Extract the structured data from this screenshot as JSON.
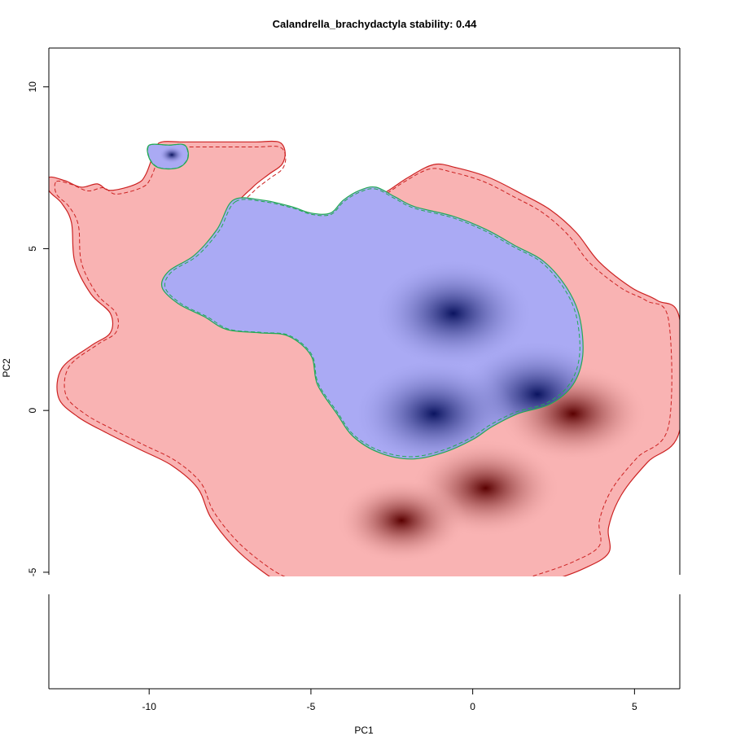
{
  "chart_data": {
    "type": "heatmap",
    "title": "Calandrella_brachydactyla stability: 0.44",
    "xlabel": "PC1",
    "ylabel": "PC2",
    "xlim": [
      -13.1,
      6.4
    ],
    "ylim": [
      -8.6,
      11.2
    ],
    "x_ticks": [
      -10,
      -5,
      0,
      5
    ],
    "y_ticks": [
      10,
      5,
      0,
      -5
    ],
    "grid": false,
    "legend": "none",
    "colors": {
      "background_niche": "#f9b3b3",
      "background_niche_outline": "#cc2222",
      "target_niche": "#aaaaf4",
      "target_niche_outline": "#22aa55",
      "background_density_peak": "#5a0000",
      "target_density_peak": "#0b1460"
    },
    "series": [
      {
        "region": "background",
        "outline": [
          [
            -13.1,
            7.2
          ],
          [
            -12.6,
            7.1
          ],
          [
            -12.1,
            6.9
          ],
          [
            -11.6,
            7.0
          ],
          [
            -11.2,
            6.8
          ],
          [
            -10.4,
            7.0
          ],
          [
            -10.1,
            7.3
          ],
          [
            -9.8,
            8.1
          ],
          [
            -9.6,
            8.3
          ],
          [
            -9.0,
            8.3
          ],
          [
            -8.2,
            8.3
          ],
          [
            -7.5,
            8.3
          ],
          [
            -6.7,
            8.3
          ],
          [
            -6.0,
            8.3
          ],
          [
            -5.8,
            8.0
          ],
          [
            -5.9,
            7.6
          ],
          [
            -6.3,
            7.3
          ],
          [
            -6.8,
            6.9
          ],
          [
            -7.3,
            6.3
          ],
          [
            -6.3,
            6.3
          ],
          [
            -5.4,
            6.2
          ],
          [
            -4.6,
            6.0
          ],
          [
            -4.0,
            6.1
          ],
          [
            -3.3,
            6.4
          ],
          [
            -2.6,
            6.8
          ],
          [
            -2.0,
            7.2
          ],
          [
            -1.2,
            7.6
          ],
          [
            -0.5,
            7.5
          ],
          [
            0.5,
            7.2
          ],
          [
            1.5,
            6.7
          ],
          [
            2.4,
            6.2
          ],
          [
            3.2,
            5.5
          ],
          [
            3.9,
            4.6
          ],
          [
            4.9,
            3.8
          ],
          [
            5.7,
            3.4
          ],
          [
            6.4,
            2.8
          ],
          [
            6.4,
            -0.6
          ],
          [
            5.4,
            -1.6
          ],
          [
            4.6,
            -2.6
          ],
          [
            4.2,
            -3.6
          ],
          [
            4.2,
            -4.4
          ],
          [
            3.4,
            -4.9
          ],
          [
            2.3,
            -5.3
          ],
          [
            1.2,
            -5.6
          ],
          [
            -0.1,
            -5.6
          ],
          [
            -1.9,
            -5.6
          ],
          [
            -3.6,
            -5.6
          ],
          [
            -4.9,
            -5.6
          ],
          [
            -5.8,
            -5.4
          ],
          [
            -6.6,
            -4.9
          ],
          [
            -7.4,
            -4.2
          ],
          [
            -8.1,
            -3.3
          ],
          [
            -8.5,
            -2.4
          ],
          [
            -9.3,
            -1.7
          ],
          [
            -10.3,
            -1.2
          ],
          [
            -11.3,
            -0.7
          ],
          [
            -12.2,
            -0.2
          ],
          [
            -12.8,
            0.4
          ],
          [
            -12.7,
            1.3
          ],
          [
            -11.8,
            2.0
          ],
          [
            -11.2,
            2.4
          ],
          [
            -11.2,
            3.0
          ],
          [
            -11.8,
            3.6
          ],
          [
            -12.3,
            4.6
          ],
          [
            -12.4,
            5.8
          ],
          [
            -12.7,
            6.4
          ],
          [
            -13.1,
            6.8
          ]
        ],
        "density_peaks": [
          [
            0.4,
            -2.4
          ],
          [
            3.1,
            -0.1
          ],
          [
            -2.2,
            -3.4
          ]
        ]
      },
      {
        "region": "target",
        "outline": [
          [
            -7.4,
            6.5
          ],
          [
            -6.5,
            6.5
          ],
          [
            -5.6,
            6.3
          ],
          [
            -5.0,
            6.1
          ],
          [
            -4.4,
            6.1
          ],
          [
            -4.0,
            6.5
          ],
          [
            -3.5,
            6.8
          ],
          [
            -3.0,
            6.9
          ],
          [
            -2.4,
            6.6
          ],
          [
            -1.8,
            6.3
          ],
          [
            -0.6,
            6.0
          ],
          [
            0.4,
            5.6
          ],
          [
            1.3,
            5.1
          ],
          [
            2.2,
            4.6
          ],
          [
            2.9,
            3.8
          ],
          [
            3.3,
            2.9
          ],
          [
            3.4,
            1.7
          ],
          [
            3.1,
            0.8
          ],
          [
            2.4,
            0.2
          ],
          [
            1.4,
            -0.1
          ],
          [
            0.6,
            -0.5
          ],
          [
            0.0,
            -0.9
          ],
          [
            -0.9,
            -1.3
          ],
          [
            -1.9,
            -1.5
          ],
          [
            -2.9,
            -1.3
          ],
          [
            -3.7,
            -0.8
          ],
          [
            -4.2,
            -0.1
          ],
          [
            -4.8,
            0.8
          ],
          [
            -5.0,
            1.7
          ],
          [
            -5.7,
            2.3
          ],
          [
            -6.6,
            2.4
          ],
          [
            -7.6,
            2.5
          ],
          [
            -8.3,
            2.9
          ],
          [
            -9.1,
            3.3
          ],
          [
            -9.6,
            3.8
          ],
          [
            -9.4,
            4.3
          ],
          [
            -8.6,
            4.8
          ],
          [
            -7.9,
            5.6
          ]
        ],
        "density_peaks": [
          [
            2.0,
            0.5
          ],
          [
            -1.2,
            -0.1
          ],
          [
            -0.6,
            3.0
          ]
        ]
      },
      {
        "region": "target_isolated_patch",
        "outline": [
          [
            -10.0,
            8.2
          ],
          [
            -9.4,
            8.2
          ],
          [
            -8.9,
            8.2
          ],
          [
            -8.8,
            7.8
          ],
          [
            -9.1,
            7.5
          ],
          [
            -9.7,
            7.5
          ],
          [
            -10.0,
            7.8
          ]
        ],
        "density_peaks": [
          [
            -9.3,
            7.9
          ]
        ]
      }
    ]
  }
}
